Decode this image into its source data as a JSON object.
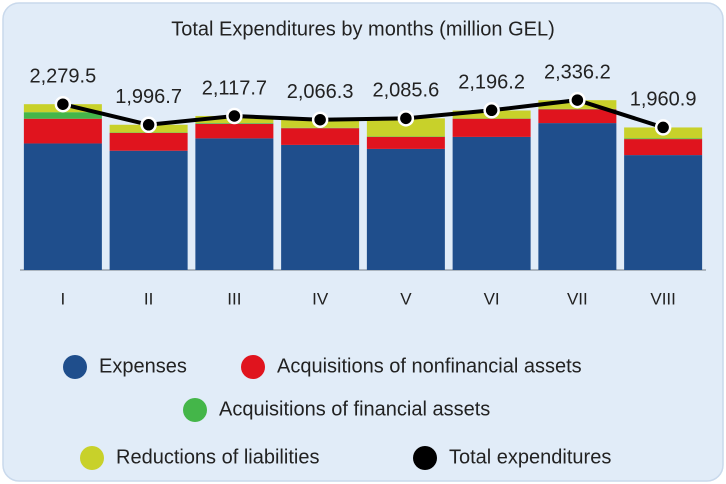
{
  "chart_data": {
    "type": "bar",
    "title": "Total Expenditures by months (million GEL)",
    "categories": [
      "I",
      "II",
      "III",
      "IV",
      "V",
      "VI",
      "VII",
      "VIII"
    ],
    "series": [
      {
        "name": "Expenses",
        "color": "#1f4e8c",
        "values": [
          1740,
          1640,
          1810,
          1720,
          1665,
          1830,
          2020,
          1580
        ]
      },
      {
        "name": "Acquisitions of nonfinancial assets",
        "color": "#e0141e",
        "values": [
          340,
          245,
          200,
          230,
          165,
          250,
          190,
          220
        ]
      },
      {
        "name": "Acquisitions of financial assets",
        "color": "#44b649",
        "values": [
          90,
          5,
          10,
          5,
          5,
          3,
          5,
          10
        ]
      },
      {
        "name": "Reductions of liabilities",
        "color": "#c8d12a",
        "values": [
          110,
          107,
          98,
          110,
          250,
          110,
          120,
          150
        ]
      },
      {
        "name": "Total expenditures",
        "color": "#000000",
        "type": "line",
        "values": [
          2279.5,
          1996.7,
          2117.7,
          2066.3,
          2085.6,
          2196.2,
          2336.2,
          1960.9
        ],
        "value_labels": [
          "2,279.5",
          "1,996.7",
          "2,117.7",
          "2,066.3",
          "2,085.6",
          "2,196.2",
          "2,336.2",
          "1,960.9"
        ]
      }
    ],
    "ylim": [
      0,
      2500
    ],
    "stacked": true
  }
}
